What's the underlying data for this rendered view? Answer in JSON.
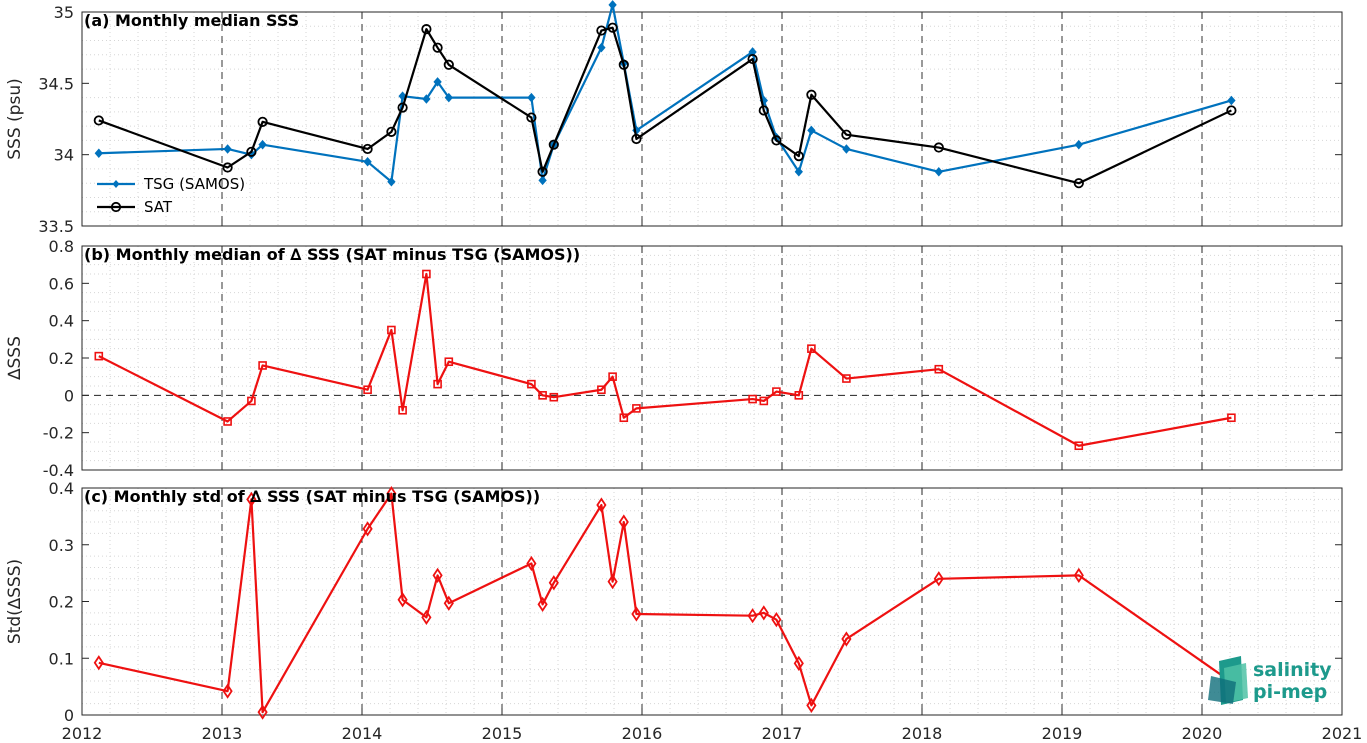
{
  "colors": {
    "tsg": "#0072bd",
    "sat": "#000000",
    "delta": "#ee1111",
    "logo": "#1d9a8c"
  },
  "logo": {
    "line1": "salinity",
    "line2": "pi-mep"
  },
  "x_axis": {
    "ticks": [
      "2012",
      "2013",
      "2014",
      "2015",
      "2016",
      "2017",
      "2018",
      "2019",
      "2020",
      "2021"
    ]
  },
  "chart_data": [
    {
      "type": "line",
      "title": "(a) Monthly median SSS",
      "ylabel": "SSS (psu)",
      "xlim": [
        2012,
        2021
      ],
      "ylim": [
        33.5,
        35
      ],
      "yticks": [
        "33.5",
        "34",
        "34.5",
        "35"
      ],
      "grid": true,
      "legend": "lower-left",
      "series": [
        {
          "name": "TSG (SAMOS)",
          "marker": "diamond-filled",
          "x": [
            2012.12,
            2013.04,
            2013.21,
            2013.29,
            2014.04,
            2014.21,
            2014.29,
            2014.46,
            2014.54,
            2014.62,
            2015.21,
            2015.29,
            2015.37,
            2015.71,
            2015.79,
            2015.87,
            2015.96,
            2016.79,
            2016.87,
            2016.96,
            2017.12,
            2017.21,
            2017.46,
            2018.12,
            2019.12,
            2020.21
          ],
          "y": [
            34.01,
            34.04,
            34.0,
            34.07,
            33.95,
            33.81,
            34.41,
            34.39,
            34.51,
            34.4,
            34.4,
            33.82,
            34.07,
            34.75,
            35.05,
            34.64,
            34.17,
            34.72,
            34.38,
            34.12,
            33.88,
            34.17,
            34.04,
            33.88,
            34.07,
            34.38
          ]
        },
        {
          "name": "SAT",
          "marker": "circle-open",
          "x": [
            2012.12,
            2013.04,
            2013.21,
            2013.29,
            2014.04,
            2014.21,
            2014.29,
            2014.46,
            2014.54,
            2014.62,
            2015.21,
            2015.29,
            2015.37,
            2015.71,
            2015.79,
            2015.87,
            2015.96,
            2016.79,
            2016.87,
            2016.96,
            2017.12,
            2017.21,
            2017.46,
            2018.12,
            2019.12,
            2020.21
          ],
          "y": [
            34.24,
            33.91,
            34.02,
            34.23,
            34.04,
            34.16,
            34.33,
            34.88,
            34.75,
            34.63,
            34.26,
            33.88,
            34.07,
            34.87,
            34.89,
            34.63,
            34.11,
            34.67,
            34.31,
            34.1,
            33.99,
            34.42,
            34.14,
            34.05,
            33.8,
            34.31
          ]
        }
      ]
    },
    {
      "type": "line",
      "title": "(b) Monthly median of ∆ SSS (SAT minus TSG (SAMOS))",
      "ylabel": "∆SSS",
      "xlim": [
        2012,
        2021
      ],
      "ylim": [
        -0.4,
        0.8
      ],
      "yticks": [
        "-0.4",
        "-0.2",
        "0",
        "0.2",
        "0.4",
        "0.6",
        "0.8"
      ],
      "grid": true,
      "zero_line": true,
      "series": [
        {
          "marker": "square-open",
          "x": [
            2012.12,
            2013.04,
            2013.21,
            2013.29,
            2014.04,
            2014.21,
            2014.29,
            2014.46,
            2014.54,
            2014.62,
            2015.21,
            2015.29,
            2015.37,
            2015.71,
            2015.79,
            2015.87,
            2015.96,
            2016.79,
            2016.87,
            2016.96,
            2017.12,
            2017.21,
            2017.46,
            2018.12,
            2019.12,
            2020.21
          ],
          "y": [
            0.21,
            -0.14,
            -0.03,
            0.16,
            0.03,
            0.35,
            -0.08,
            0.65,
            0.06,
            0.18,
            0.06,
            0.0,
            -0.01,
            0.03,
            0.1,
            -0.12,
            -0.07,
            -0.02,
            -0.03,
            0.02,
            0.0,
            0.25,
            0.09,
            0.14,
            -0.27,
            -0.12
          ]
        }
      ]
    },
    {
      "type": "line",
      "title": "(c) Monthly std of ∆ SSS (SAT minus TSG (SAMOS))",
      "ylabel": "Std(∆SSS)",
      "xlim": [
        2012,
        2021
      ],
      "ylim": [
        0,
        0.4
      ],
      "yticks": [
        "0",
        "0.1",
        "0.2",
        "0.3",
        "0.4"
      ],
      "grid": true,
      "series": [
        {
          "marker": "diamond-open",
          "x": [
            2012.12,
            2013.04,
            2013.21,
            2013.29,
            2014.04,
            2014.21,
            2014.29,
            2014.46,
            2014.54,
            2014.62,
            2015.21,
            2015.29,
            2015.37,
            2015.71,
            2015.79,
            2015.87,
            2015.96,
            2016.79,
            2016.87,
            2016.96,
            2017.12,
            2017.21,
            2017.46,
            2018.12,
            2019.12,
            2020.21
          ],
          "y": [
            0.092,
            0.042,
            0.38,
            0.005,
            0.328,
            0.39,
            0.203,
            0.172,
            0.246,
            0.197,
            0.267,
            0.195,
            0.233,
            0.37,
            0.235,
            0.34,
            0.178,
            0.175,
            0.18,
            0.168,
            0.091,
            0.017,
            0.134,
            0.24,
            0.246,
            0.058
          ]
        }
      ]
    }
  ]
}
